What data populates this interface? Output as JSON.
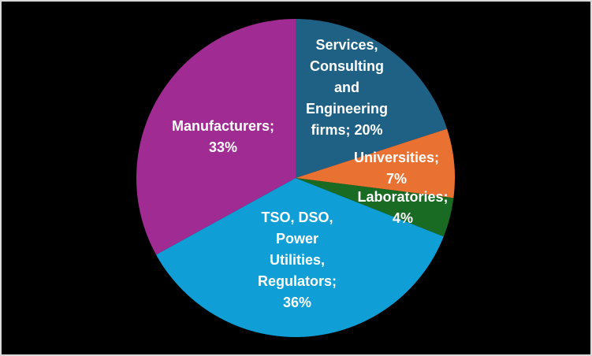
{
  "chart_data": {
    "type": "pie",
    "title": "",
    "start_angle_deg": 0,
    "direction": "clockwise",
    "slices": [
      {
        "name": "Services, Consulting and Engineering firms",
        "value": 20,
        "color": "#1F6085",
        "label_lines": [
          "Services,",
          "Consulting",
          "and",
          "Engineering",
          "firms; 20%"
        ]
      },
      {
        "name": "Universities",
        "value": 7,
        "color": "#E97132",
        "label_lines": [
          "Universities;",
          "7%"
        ]
      },
      {
        "name": "Laboratories",
        "value": 4,
        "color": "#196B24",
        "label_lines": [
          "Laboratories;",
          "4%"
        ]
      },
      {
        "name": "TSO, DSO, Power Utilities, Regulators",
        "value": 36,
        "color": "#0F9ED5",
        "label_lines": [
          "TSO, DSO,",
          "Power",
          "Utilities,",
          "Regulators;",
          "36%"
        ]
      },
      {
        "name": "Manufacturers",
        "value": 33,
        "color": "#A02B93",
        "label_lines": [
          "Manufacturers;",
          "33%"
        ]
      }
    ],
    "legend": "none"
  }
}
